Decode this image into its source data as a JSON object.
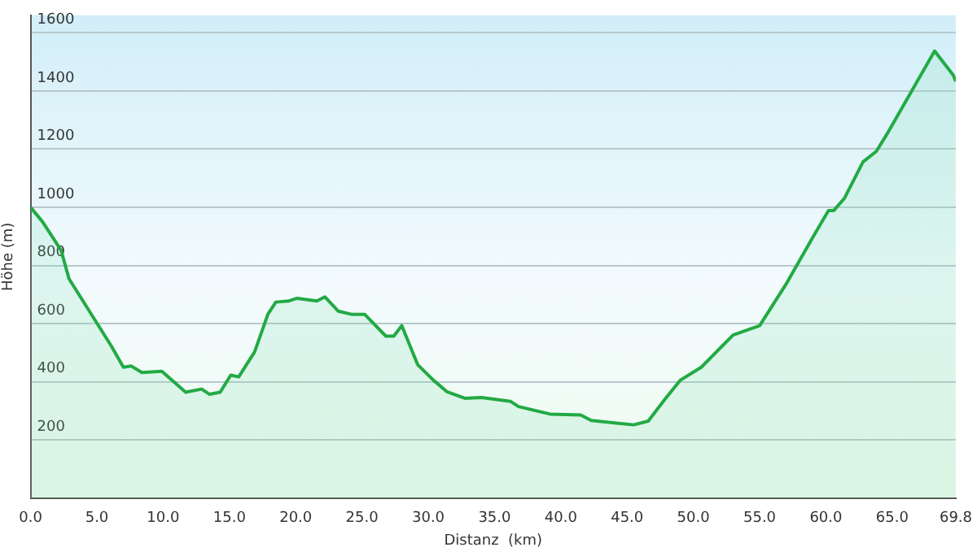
{
  "chart_data": {
    "type": "area",
    "xlabel": "Distanz  (km)",
    "ylabel": "Höhe (m)",
    "x": [
      0,
      0.9,
      2.3,
      2.9,
      4.5,
      6.1,
      7.0,
      7.6,
      8.4,
      9.9,
      11.7,
      12.9,
      13.5,
      14.3,
      15.1,
      15.7,
      16.9,
      17.9,
      18.5,
      19.5,
      20.1,
      21.6,
      22.2,
      23.2,
      24.2,
      25.2,
      26.8,
      27.4,
      28.0,
      29.2,
      30.4,
      31.4,
      32.8,
      34.0,
      36.2,
      36.8,
      39.2,
      41.5,
      42.3,
      45.5,
      46.6,
      47.8,
      49.0,
      50.6,
      53.0,
      55.0,
      57.0,
      59.0,
      60.2,
      60.6,
      61.4,
      62.8,
      63.8,
      64.6,
      68.2,
      69.6,
      69.8
    ],
    "series": [
      {
        "color": "#22aa44",
        "values": [
          1000,
          950,
          852,
          754,
          638,
          522,
          450,
          454,
          432,
          436,
          364,
          375,
          357,
          364,
          423,
          417,
          503,
          632,
          674,
          678,
          687,
          678,
          692,
          643,
          632,
          632,
          557,
          557,
          593,
          459,
          405,
          366,
          343,
          346,
          333,
          315,
          289,
          286,
          267,
          252,
          265,
          337,
          405,
          450,
          561,
          593,
          736,
          896,
          989,
          989,
          1031,
          1156,
          1192,
          1251,
          1537,
          1455,
          1433
        ]
      }
    ],
    "xlim": [
      0,
      69.8
    ],
    "ylim": [
      0,
      1660
    ],
    "xticks": [
      {
        "value": 0,
        "label": "0.0"
      },
      {
        "value": 5,
        "label": "5.0"
      },
      {
        "value": 10,
        "label": "10.0"
      },
      {
        "value": 15,
        "label": "15.0"
      },
      {
        "value": 20,
        "label": "20.0"
      },
      {
        "value": 25,
        "label": "25.0"
      },
      {
        "value": 30,
        "label": "30.0"
      },
      {
        "value": 35,
        "label": "35.0"
      },
      {
        "value": 40,
        "label": "40.0"
      },
      {
        "value": 45,
        "label": "45.0"
      },
      {
        "value": 50,
        "label": "50.0"
      },
      {
        "value": 55,
        "label": "55.0"
      },
      {
        "value": 60,
        "label": "60.0"
      },
      {
        "value": 65,
        "label": "65.0"
      },
      69.8
    ],
    "yticks": [
      200,
      400,
      600,
      800,
      1000,
      1200,
      1400,
      1600
    ],
    "grid": "y",
    "legend": false,
    "marker": "none",
    "line_style": "solid"
  }
}
